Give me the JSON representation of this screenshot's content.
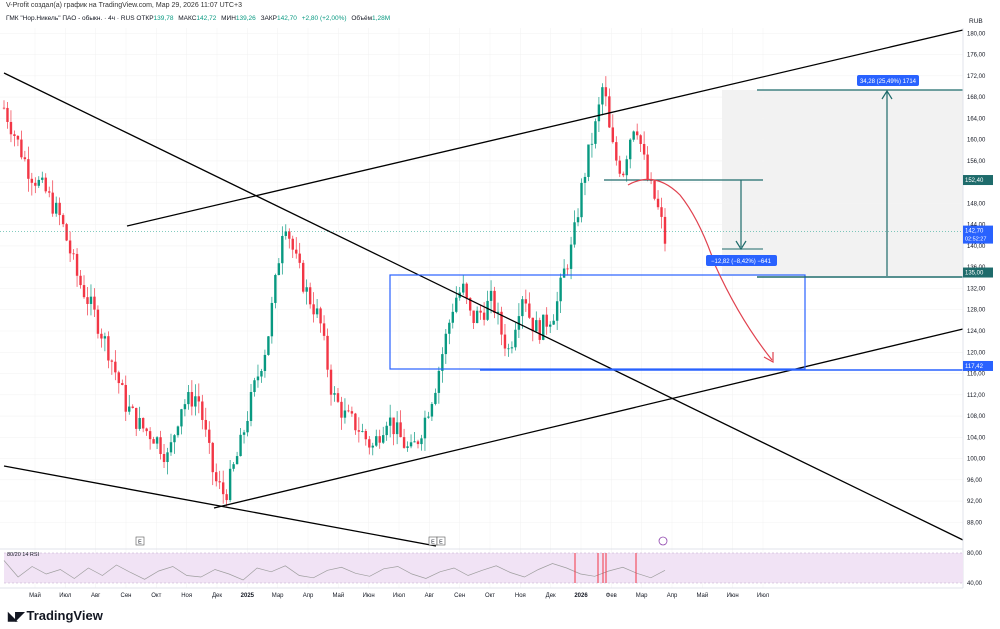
{
  "caption": "V-Profit создал(а) график на TradingView.com, Мар 29, 2026 11:07 UTC+3",
  "symbol": {
    "title": "ГМК \"Нор.Никель\" ПАО - обыкн. · 4ч · RUS",
    "otkr_label": "ОТКР",
    "otkr": "139,78",
    "maks_label": "МАКС",
    "maks": "142,72",
    "min_label": "МИН",
    "min": "139,26",
    "zakr_label": "ЗАКР",
    "zakr": "142,70",
    "change": "+2,80 (+2,00%)",
    "vol_label": "Объём",
    "vol": "1,28M"
  },
  "logo_text": "TradingView",
  "colors": {
    "candle_up": "#089981",
    "candle_down": "#f23645",
    "trendline": "#000000",
    "box": "#2962ff",
    "measure": "#1e6b6b",
    "arrow": "#e0424f",
    "rsi_band": "#f1e3f5",
    "rsi_line": "#a0a0a0"
  },
  "chart_data": {
    "type": "candlestick",
    "currency": "RUB",
    "ylim": [
      86,
      181
    ],
    "y_ticks": [
      "180,00",
      "176,00",
      "172,00",
      "168,00",
      "164,00",
      "160,00",
      "156,00",
      "152,00",
      "148,00",
      "144,00",
      "140,00",
      "136,00",
      "132,00",
      "128,00",
      "124,00",
      "120,00",
      "116,00",
      "112,00",
      "108,00",
      "104,00",
      "100,00",
      "96,00",
      "92,00",
      "88,00"
    ],
    "x_ticks": [
      "Май",
      "Июл",
      "Авг",
      "Сен",
      "Окт",
      "Ноя",
      "Дек",
      "2025",
      "Мар",
      "Апр",
      "Май",
      "Июн",
      "Июл",
      "Авг",
      "Сен",
      "Окт",
      "Ноя",
      "Дек",
      "2026",
      "Фев",
      "Мар",
      "Апр",
      "Май",
      "Июн",
      "Июл"
    ],
    "price_path": [
      [
        0,
        166
      ],
      [
        12,
        154
      ],
      [
        20,
        150
      ],
      [
        27,
        145
      ],
      [
        35,
        134
      ],
      [
        42,
        128
      ],
      [
        50,
        120
      ],
      [
        58,
        110
      ],
      [
        65,
        106
      ],
      [
        72,
        104
      ],
      [
        78,
        100
      ],
      [
        84,
        110
      ],
      [
        92,
        112
      ],
      [
        100,
        96
      ],
      [
        105,
        93
      ],
      [
        112,
        102
      ],
      [
        118,
        112
      ],
      [
        125,
        122
      ],
      [
        130,
        136
      ],
      [
        133,
        146
      ],
      [
        138,
        138
      ],
      [
        143,
        132
      ],
      [
        150,
        126
      ],
      [
        156,
        112
      ],
      [
        162,
        108
      ],
      [
        168,
        106
      ],
      [
        175,
        102
      ],
      [
        182,
        108
      ],
      [
        188,
        104
      ],
      [
        193,
        101
      ],
      [
        197,
        104
      ],
      [
        202,
        110
      ],
      [
        205,
        114
      ],
      [
        210,
        123
      ],
      [
        214,
        130
      ],
      [
        218,
        132
      ],
      [
        222,
        126
      ],
      [
        228,
        128
      ],
      [
        232,
        130
      ],
      [
        236,
        124
      ],
      [
        240,
        120
      ],
      [
        244,
        128
      ],
      [
        247,
        132
      ],
      [
        250,
        126
      ],
      [
        254,
        124
      ],
      [
        258,
        126
      ],
      [
        262,
        128
      ],
      [
        266,
        135
      ],
      [
        270,
        140
      ],
      [
        274,
        150
      ],
      [
        278,
        158
      ],
      [
        282,
        164
      ],
      [
        284,
        170
      ],
      [
        286,
        167
      ],
      [
        288,
        160
      ],
      [
        291,
        156
      ],
      [
        294,
        154
      ],
      [
        297,
        160
      ],
      [
        300,
        164
      ],
      [
        303,
        158
      ],
      [
        306,
        152
      ],
      [
        309,
        149
      ],
      [
        312,
        145
      ],
      [
        314,
        141
      ]
    ],
    "last_price": "142,70",
    "countdown": "02:52:27",
    "level_labels": [
      "152,40",
      "135,00",
      "117,42"
    ],
    "measure_down_label": "−12,82 (−8,42%) −641",
    "measure_up_label": "34,28 (25,49%) 1714",
    "rsi": {
      "label": "80/20 14 RSI",
      "y_ticks": [
        "80,00",
        "40,00"
      ],
      "values": [
        70,
        48,
        62,
        52,
        58,
        46,
        60,
        50,
        64,
        54,
        45,
        56,
        62,
        50,
        48,
        58,
        52,
        44,
        60,
        55,
        63,
        50,
        47,
        57,
        61,
        53,
        49,
        59,
        62,
        52,
        46,
        55,
        60,
        50,
        57,
        63,
        54,
        48,
        58,
        66,
        60,
        52,
        49,
        56,
        61,
        53,
        47,
        57
      ]
    },
    "event_markers": [
      "E",
      "E",
      "E"
    ]
  }
}
